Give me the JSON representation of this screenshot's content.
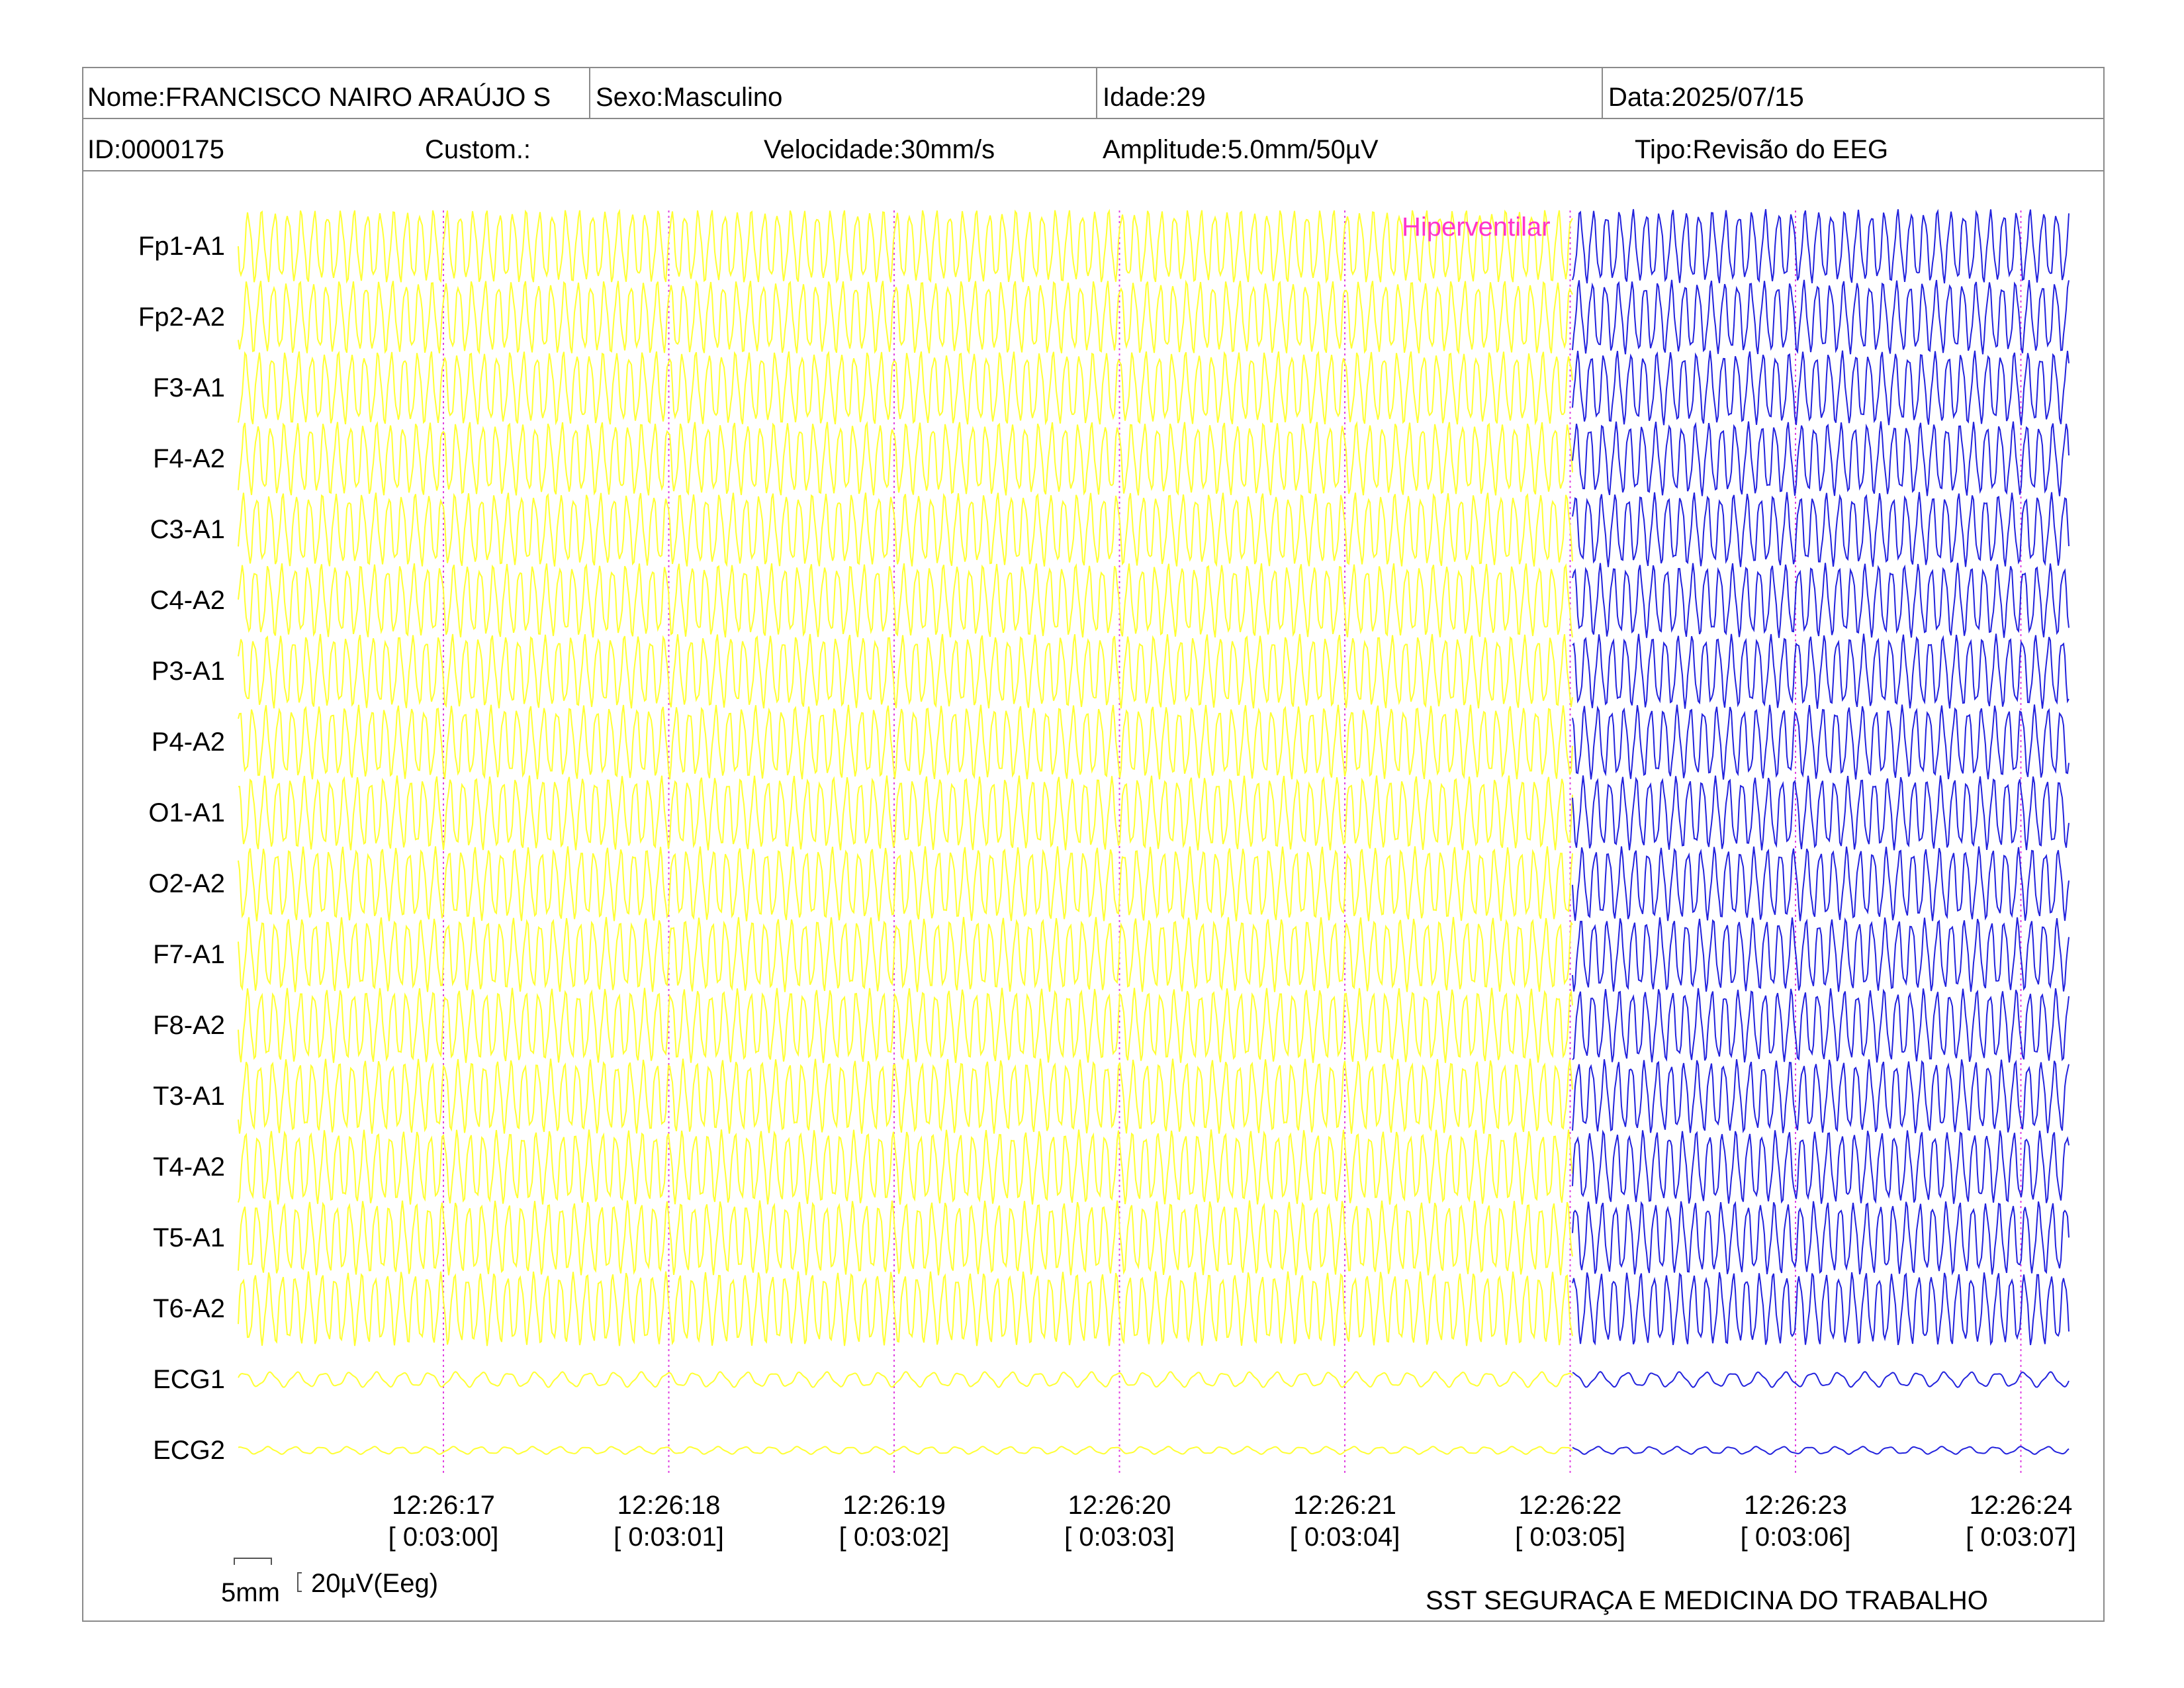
{
  "header": {
    "nome": "Nome:FRANCISCO NAIRO ARAÚJO S",
    "sexo": "Sexo:Masculino",
    "idade": "Idade:29",
    "data": "Data:2025/07/15",
    "id": "ID:0000175",
    "custom": "Custom.:",
    "velocidade": "Velocidade:30mm/s",
    "amplitude": "Amplitude:5.0mm/50µV",
    "tipo": "Tipo:Revisão do EEG"
  },
  "channels": [
    "Fp1-A1",
    "Fp2-A2",
    "F3-A1",
    "F4-A2",
    "C3-A1",
    "C4-A2",
    "P3-A1",
    "P4-A2",
    "O1-A1",
    "O2-A2",
    "F7-A1",
    "F8-A2",
    "T3-A1",
    "T4-A2",
    "T5-A1",
    "T6-A2",
    "ECG1",
    "ECG2"
  ],
  "time_marks": [
    {
      "clock": "12:26:17",
      "elapsed": "[ 0:03:00]"
    },
    {
      "clock": "12:26:18",
      "elapsed": "[ 0:03:01]"
    },
    {
      "clock": "12:26:19",
      "elapsed": "[ 0:03:02]"
    },
    {
      "clock": "12:26:20",
      "elapsed": "[ 0:03:03]"
    },
    {
      "clock": "12:26:21",
      "elapsed": "[ 0:03:04]"
    },
    {
      "clock": "12:26:22",
      "elapsed": "[ 0:03:05]"
    },
    {
      "clock": "12:26:23",
      "elapsed": "[ 0:03:06]"
    },
    {
      "clock": "12:26:24",
      "elapsed": "[ 0:03:07]"
    }
  ],
  "annotation": "Hiperventilar",
  "scale": {
    "time": "5mm",
    "amplitude": "20µV(Eeg)"
  },
  "footer": "SST SEGURAÇA E MEDICINA DO TRABALHO",
  "colors": {
    "pre_event_trace": "#ffff33",
    "post_event_trace": "#2222dd",
    "time_marker": "#e040e0",
    "annotation": "#ff33cc",
    "border": "#8a8a8a"
  }
}
